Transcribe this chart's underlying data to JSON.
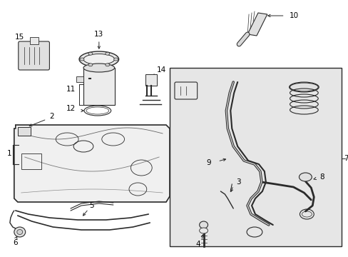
{
  "bg_color": "#ffffff",
  "line_color": "#2a2a2a",
  "box_bg": "#e8e8e8",
  "text_color": "#000000",
  "figsize": [
    4.89,
    3.6
  ],
  "dpi": 100
}
